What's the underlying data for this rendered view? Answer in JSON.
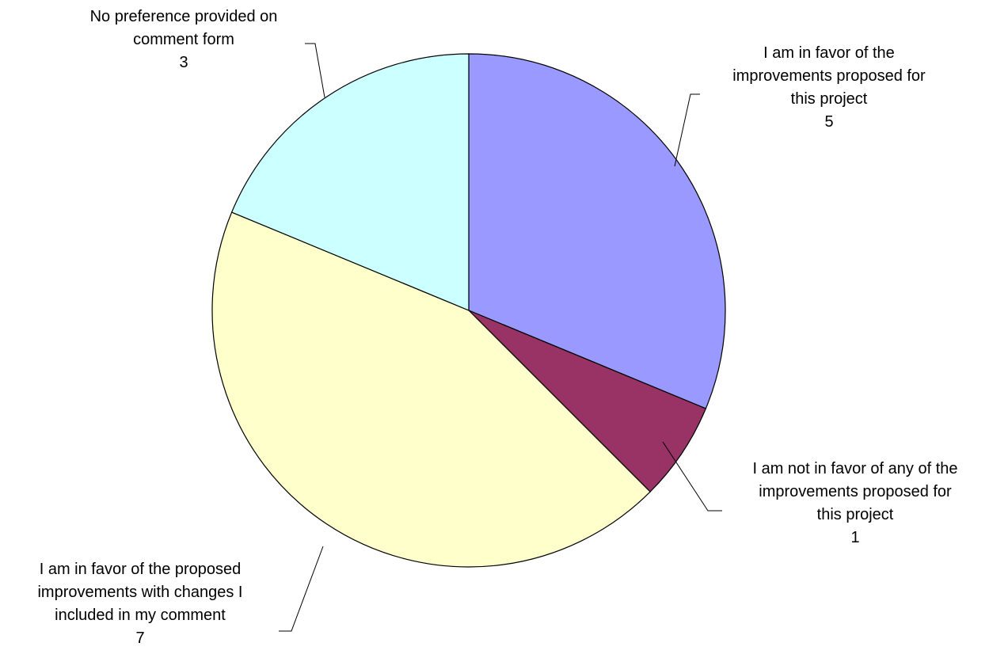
{
  "chart_data": {
    "type": "pie",
    "title": "",
    "slices": [
      {
        "label_lines": [
          "I am in favor of the",
          "improvements proposed for",
          "this project"
        ],
        "value": 5,
        "value_label": "5",
        "color": "#9999FF"
      },
      {
        "label_lines": [
          "I am not in favor of any of the",
          "improvements proposed for",
          "this project"
        ],
        "value": 1,
        "value_label": "1",
        "color": "#993366"
      },
      {
        "label_lines": [
          "I am in favor of the proposed",
          "improvements with changes I",
          "included in my comment"
        ],
        "value": 7,
        "value_label": "7",
        "color": "#FFFFCC"
      },
      {
        "label_lines": [
          "No preference provided on",
          "comment form"
        ],
        "value": 3,
        "value_label": "3",
        "color": "#CCFFFF"
      }
    ]
  }
}
